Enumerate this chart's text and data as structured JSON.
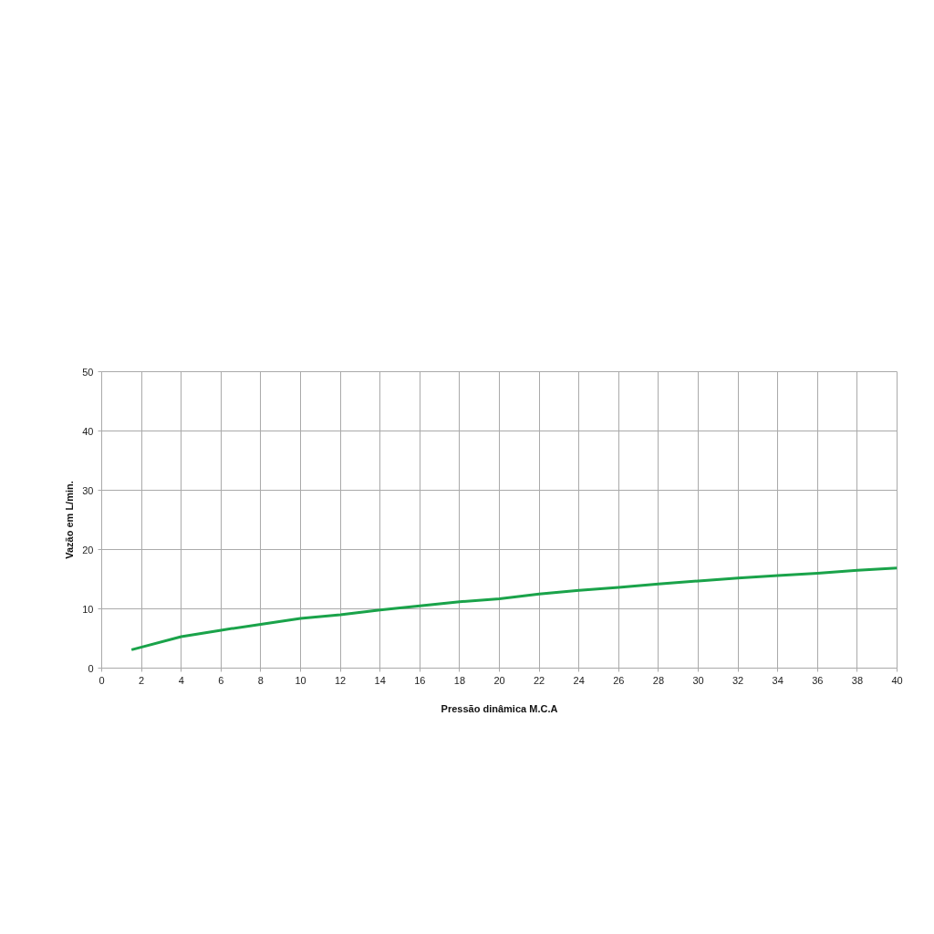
{
  "chart_data": {
    "type": "line",
    "xlabel": "Pressão dinâmica M.C.A",
    "ylabel": "Vazão em L/min.",
    "x": [
      1.5,
      4,
      6,
      8,
      10,
      12,
      14,
      16,
      18,
      20,
      22,
      24,
      26,
      28,
      30,
      32,
      34,
      36,
      38,
      40
    ],
    "series": [
      {
        "color": "#1aa34a",
        "values": [
          3.1,
          5.3,
          6.4,
          7.4,
          8.4,
          9.0,
          9.8,
          10.5,
          11.2,
          11.7,
          12.5,
          13.1,
          13.6,
          14.2,
          14.7,
          15.2,
          15.6,
          16.0,
          16.5,
          16.9
        ]
      }
    ],
    "xlim": [
      0,
      40
    ],
    "ylim": [
      0,
      50
    ],
    "xticks": [
      0,
      2,
      4,
      6,
      8,
      10,
      12,
      14,
      16,
      18,
      20,
      22,
      24,
      26,
      28,
      30,
      32,
      34,
      36,
      38,
      40
    ],
    "yticks": [
      0,
      10,
      20,
      30,
      40,
      50
    ],
    "grid": true,
    "marker": "none",
    "line_style": "solid"
  }
}
